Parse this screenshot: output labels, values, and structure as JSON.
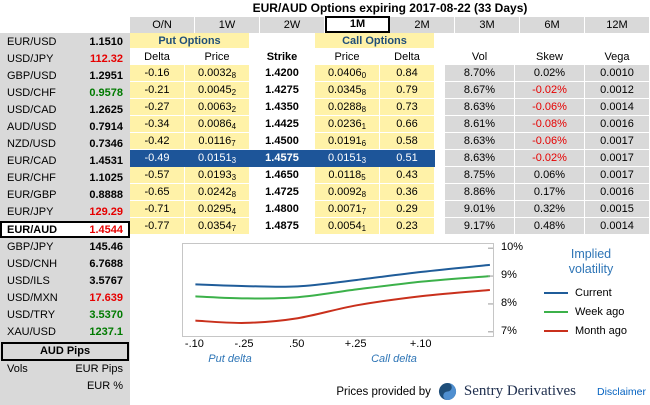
{
  "title": "EUR/AUD Options expiring 2017-08-22 (33 Days)",
  "sidebar": {
    "pairs": [
      {
        "name": "EUR/USD",
        "value": "1.1510",
        "color": "black",
        "selected": false
      },
      {
        "name": "USD/JPY",
        "value": "112.32",
        "color": "red",
        "selected": false
      },
      {
        "name": "GBP/USD",
        "value": "1.2951",
        "color": "black",
        "selected": false
      },
      {
        "name": "USD/CHF",
        "value": "0.9578",
        "color": "green",
        "selected": false
      },
      {
        "name": "USD/CAD",
        "value": "1.2625",
        "color": "black",
        "selected": false
      },
      {
        "name": "AUD/USD",
        "value": "0.7914",
        "color": "black",
        "selected": false
      },
      {
        "name": "NZD/USD",
        "value": "0.7346",
        "color": "black",
        "selected": false
      },
      {
        "name": "EUR/CAD",
        "value": "1.4531",
        "color": "black",
        "selected": false
      },
      {
        "name": "EUR/CHF",
        "value": "1.1025",
        "color": "black",
        "selected": false
      },
      {
        "name": "EUR/GBP",
        "value": "0.8888",
        "color": "black",
        "selected": false
      },
      {
        "name": "EUR/JPY",
        "value": "129.29",
        "color": "red",
        "selected": false
      },
      {
        "name": "EUR/AUD",
        "value": "1.4544",
        "color": "red",
        "selected": true
      },
      {
        "name": "GBP/JPY",
        "value": "145.46",
        "color": "black",
        "selected": false
      },
      {
        "name": "USD/CNH",
        "value": "6.7688",
        "color": "black",
        "selected": false
      },
      {
        "name": "USD/ILS",
        "value": "3.5767",
        "color": "black",
        "selected": false
      },
      {
        "name": "USD/MXN",
        "value": "17.639",
        "color": "red",
        "selected": false
      },
      {
        "name": "USD/TRY",
        "value": "3.5370",
        "color": "green",
        "selected": false
      },
      {
        "name": "XAU/USD",
        "value": "1237.1",
        "color": "green",
        "selected": false
      }
    ],
    "units": {
      "selected_label": "AUD Pips",
      "row_label": "Vols",
      "options": [
        "EUR Pips",
        "EUR %"
      ]
    }
  },
  "tabs": {
    "items": [
      "O/N",
      "1W",
      "2W",
      "1M",
      "2M",
      "3M",
      "6M",
      "12M"
    ],
    "selected": "1M"
  },
  "table": {
    "put_options_label": "Put Options",
    "call_options_label": "Call Options",
    "columns": {
      "put_delta": "Delta",
      "put_price": "Price",
      "strike": "Strike",
      "call_price": "Price",
      "call_delta": "Delta",
      "vol": "Vol",
      "skew": "Skew",
      "vega": "Vega"
    },
    "rows": [
      {
        "put_delta": "-0.16",
        "put_price": "0.0032",
        "put_price_sub": "8",
        "strike": "1.4200",
        "call_price": "0.0406",
        "call_price_sub": "0",
        "call_delta": "0.84",
        "vol": "8.70%",
        "skew": "0.02%",
        "vega": "0.0010",
        "selected": false
      },
      {
        "put_delta": "-0.21",
        "put_price": "0.0045",
        "put_price_sub": "2",
        "strike": "1.4275",
        "call_price": "0.0345",
        "call_price_sub": "8",
        "call_delta": "0.79",
        "vol": "8.67%",
        "skew": "-0.02%",
        "vega": "0.0012",
        "selected": false
      },
      {
        "put_delta": "-0.27",
        "put_price": "0.0063",
        "put_price_sub": "2",
        "strike": "1.4350",
        "call_price": "0.0288",
        "call_price_sub": "8",
        "call_delta": "0.73",
        "vol": "8.63%",
        "skew": "-0.06%",
        "vega": "0.0014",
        "selected": false
      },
      {
        "put_delta": "-0.34",
        "put_price": "0.0086",
        "put_price_sub": "4",
        "strike": "1.4425",
        "call_price": "0.0236",
        "call_price_sub": "1",
        "call_delta": "0.66",
        "vol": "8.61%",
        "skew": "-0.08%",
        "vega": "0.0016",
        "selected": false
      },
      {
        "put_delta": "-0.42",
        "put_price": "0.0116",
        "put_price_sub": "7",
        "strike": "1.4500",
        "call_price": "0.0191",
        "call_price_sub": "6",
        "call_delta": "0.58",
        "vol": "8.63%",
        "skew": "-0.06%",
        "vega": "0.0017",
        "selected": false
      },
      {
        "put_delta": "-0.49",
        "put_price": "0.0151",
        "put_price_sub": "3",
        "strike": "1.4575",
        "call_price": "0.0151",
        "call_price_sub": "3",
        "call_delta": "0.51",
        "vol": "8.63%",
        "skew": "-0.02%",
        "vega": "0.0017",
        "selected": true
      },
      {
        "put_delta": "-0.57",
        "put_price": "0.0193",
        "put_price_sub": "3",
        "strike": "1.4650",
        "call_price": "0.0118",
        "call_price_sub": "5",
        "call_delta": "0.43",
        "vol": "8.75%",
        "skew": "0.06%",
        "vega": "0.0017",
        "selected": false
      },
      {
        "put_delta": "-0.65",
        "put_price": "0.0242",
        "put_price_sub": "8",
        "strike": "1.4725",
        "call_price": "0.0092",
        "call_price_sub": "8",
        "call_delta": "0.36",
        "vol": "8.86%",
        "skew": "0.17%",
        "vega": "0.0016",
        "selected": false
      },
      {
        "put_delta": "-0.71",
        "put_price": "0.0295",
        "put_price_sub": "4",
        "strike": "1.4800",
        "call_price": "0.0071",
        "call_price_sub": "7",
        "call_delta": "0.29",
        "vol": "9.01%",
        "skew": "0.32%",
        "vega": "0.0015",
        "selected": false
      },
      {
        "put_delta": "-0.77",
        "put_price": "0.0354",
        "put_price_sub": "7",
        "strike": "1.4875",
        "call_price": "0.0054",
        "call_price_sub": "1",
        "call_delta": "0.23",
        "vol": "9.17%",
        "skew": "0.48%",
        "vega": "0.0014",
        "selected": false
      }
    ]
  },
  "chart_data": {
    "type": "line",
    "title": "Implied volatility",
    "x_tick_labels": [
      "-.10",
      "-.25",
      ".50",
      "+.25",
      "+.10"
    ],
    "x_left_label": "Put delta",
    "x_right_label": "Call delta",
    "y_ticks": [
      10,
      9,
      8,
      7
    ],
    "y_tick_suffix": "%",
    "ylim": [
      6.85,
      10.15
    ],
    "legend_position": "right",
    "series": [
      {
        "name": "Current",
        "color": "#1F5C99",
        "values": [
          8.7,
          8.64,
          8.63,
          8.86,
          9.15,
          9.4
        ]
      },
      {
        "name": "Week ago",
        "color": "#3CB14A",
        "values": [
          8.27,
          8.2,
          8.24,
          8.52,
          8.8,
          9.0
        ]
      },
      {
        "name": "Month ago",
        "color": "#C9301C",
        "values": [
          7.4,
          7.32,
          7.49,
          7.95,
          8.28,
          8.5
        ]
      }
    ]
  },
  "footer": {
    "provided_by": "Prices provided by",
    "brand": "Sentry Derivatives",
    "disclaimer": "Disclaimer"
  }
}
